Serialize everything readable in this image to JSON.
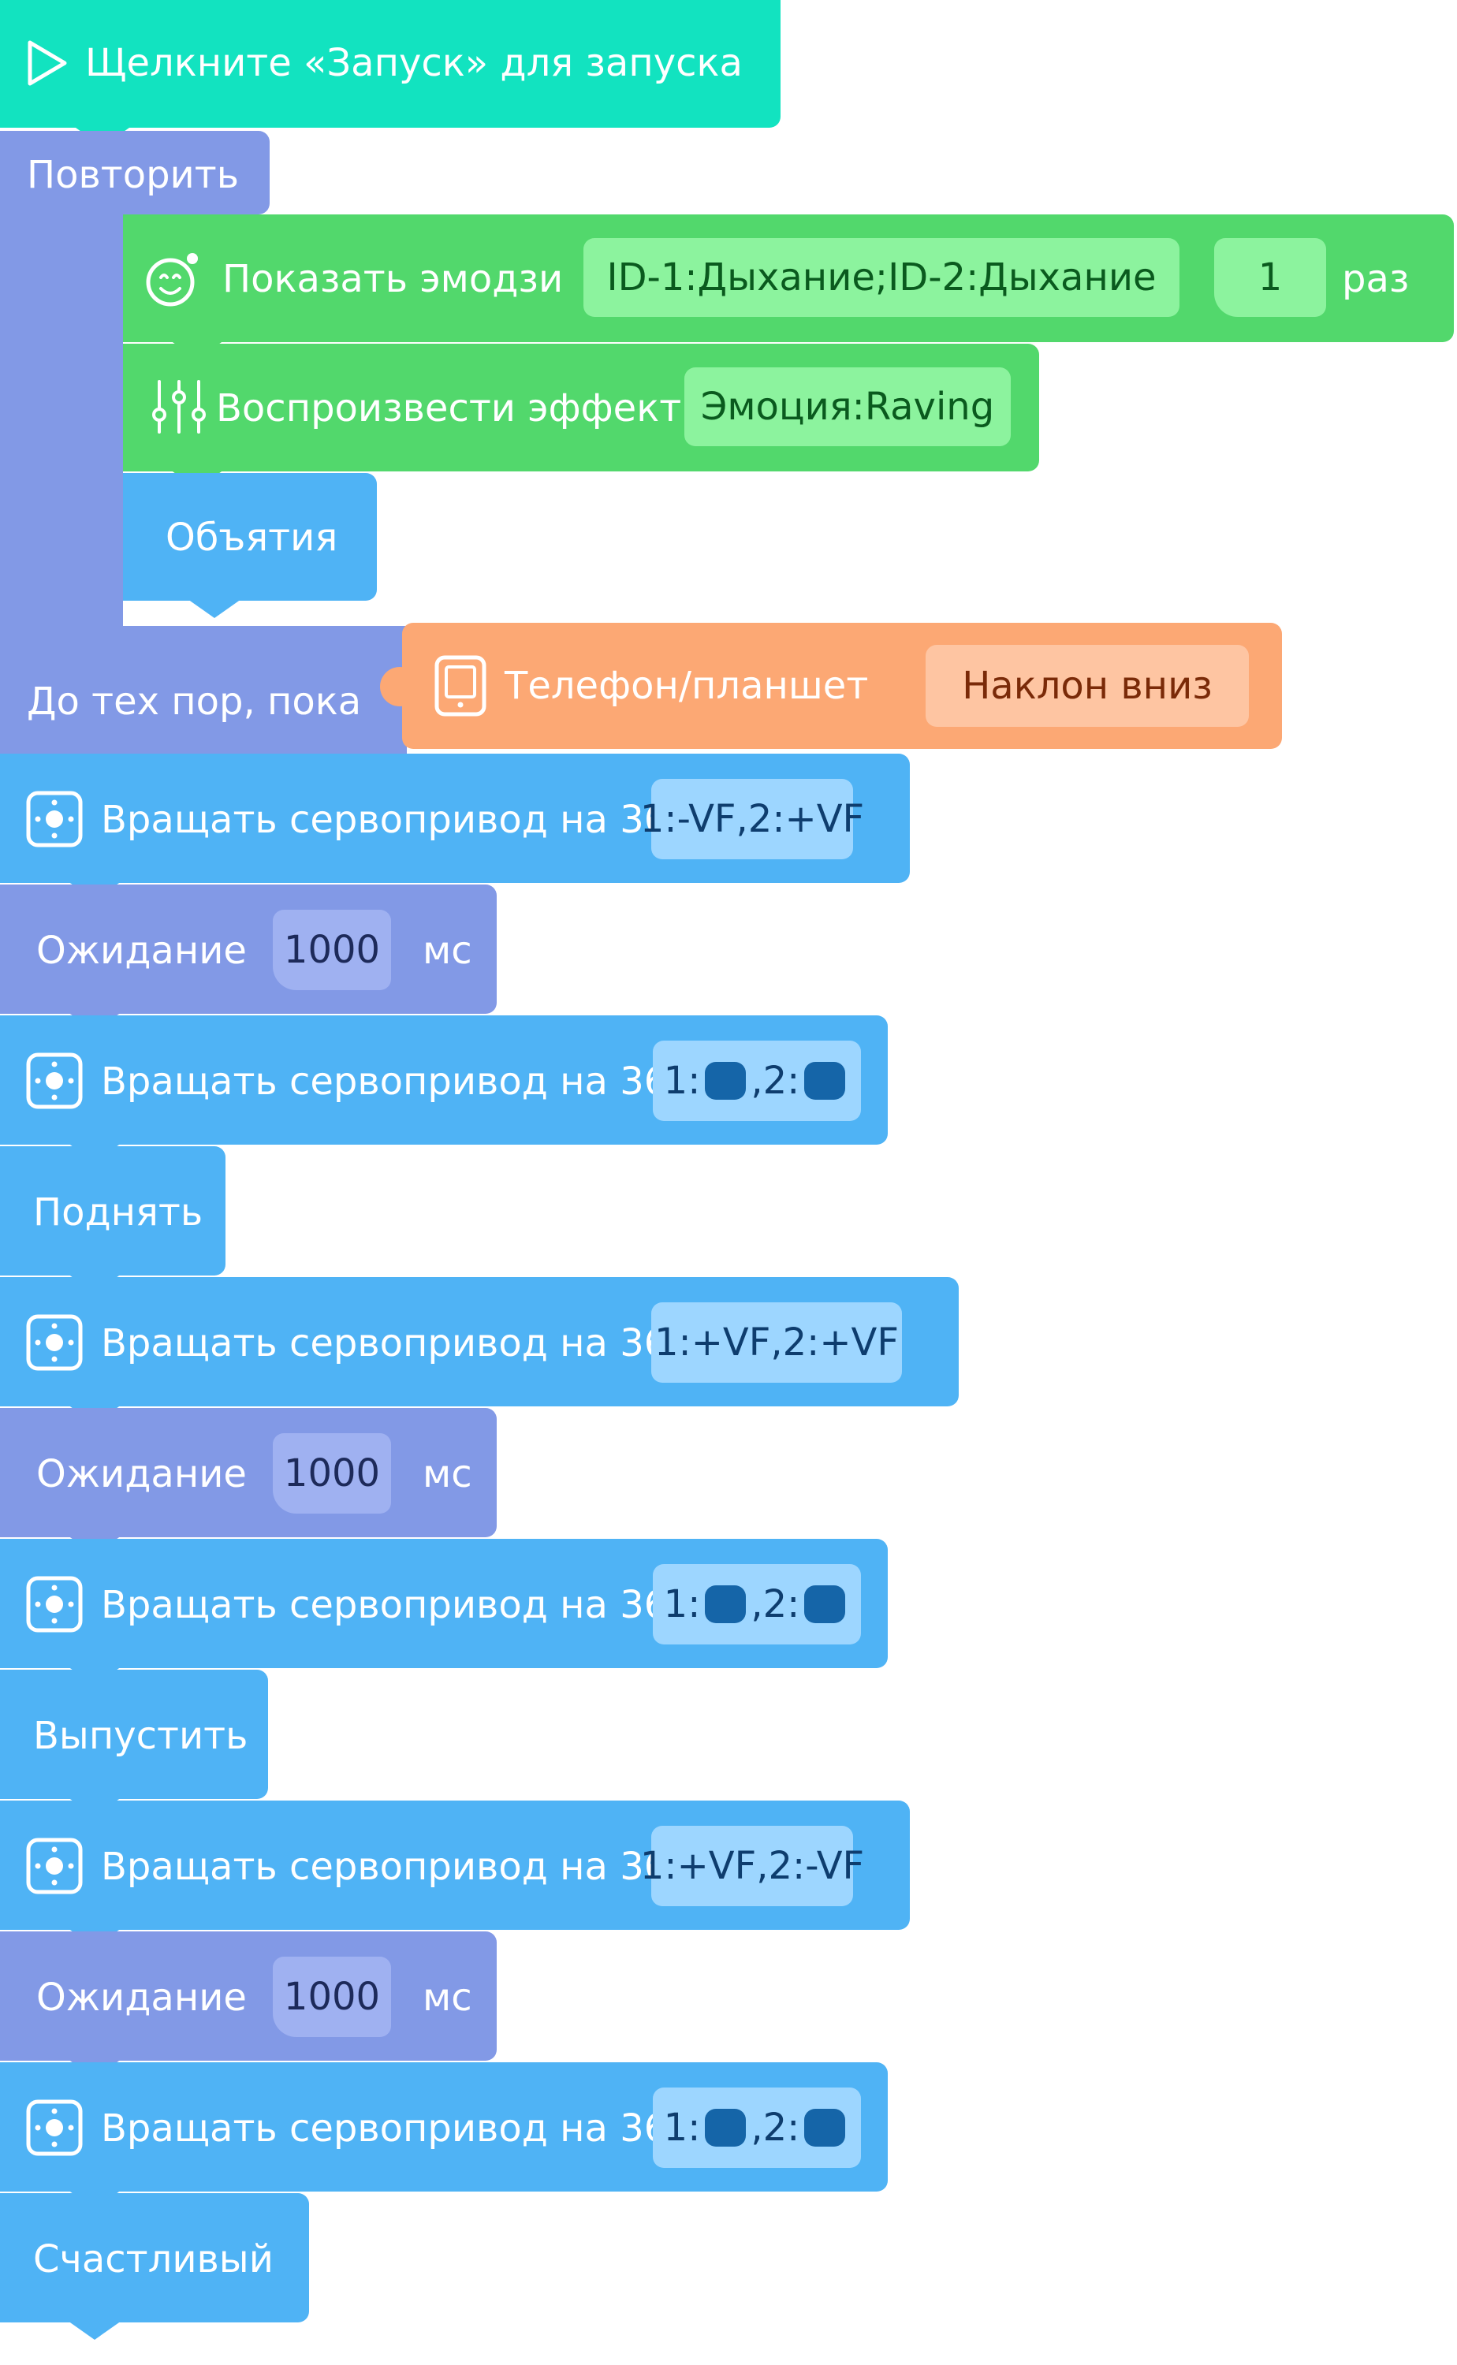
{
  "colors": {
    "start": "#12e3c0",
    "loop": "#8299e6",
    "green": "#52d86c",
    "blue": "#4fb3f5",
    "sensor": "#fca874",
    "green_chip": "#8cf39e",
    "green_chip_text": "#0a5a1e",
    "blue_chip": "#9dd6ff",
    "blue_chip_text": "#0e3d6e",
    "wait_chip": "#9fb1f1",
    "sensor_chip": "#fec5a2",
    "sensor_chip_text": "#7a2a08",
    "servo_stop": "#1565a8"
  },
  "start": {
    "icon": "play-icon",
    "label": "Щелкните «Запуск» для запуска"
  },
  "loop": {
    "label": "Повторить",
    "until_label": "До тех пор, пока"
  },
  "emoji": {
    "icon": "robot-face-icon",
    "label": "Показать эмодзи",
    "value": "ID-1:Дыхание;ID-2:Дыхание",
    "count": "1",
    "suffix": "раз"
  },
  "effect": {
    "icon": "equalizer-icon",
    "label": "Воспроизвести эффект",
    "value": "Эмоция:Raving"
  },
  "hug": {
    "label": "Объятия"
  },
  "sensor": {
    "icon": "tablet-icon",
    "label": "Телефон/планшет",
    "value": "Наклон вниз"
  },
  "servo_label": "Вращать сервопривод на 360°",
  "servo_icon": "servo-icon",
  "wait_label": "Ожидание",
  "wait_unit": "мс",
  "steps": [
    {
      "type": "servo",
      "value": "1:-VF,2:+VF"
    },
    {
      "type": "wait",
      "value": "1000"
    },
    {
      "type": "servo_stop",
      "p1": "1:",
      "p2": ",2:"
    },
    {
      "type": "action",
      "label": "Поднять"
    },
    {
      "type": "servo",
      "value": "1:+VF,2:+VF"
    },
    {
      "type": "wait",
      "value": "1000"
    },
    {
      "type": "servo_stop",
      "p1": "1:",
      "p2": ",2:"
    },
    {
      "type": "action",
      "label": "Выпустить"
    },
    {
      "type": "servo",
      "value": "1:+VF,2:-VF"
    },
    {
      "type": "wait",
      "value": "1000"
    },
    {
      "type": "servo_stop",
      "p1": "1:",
      "p2": ",2:"
    },
    {
      "type": "action",
      "label": "Счастливый"
    }
  ]
}
